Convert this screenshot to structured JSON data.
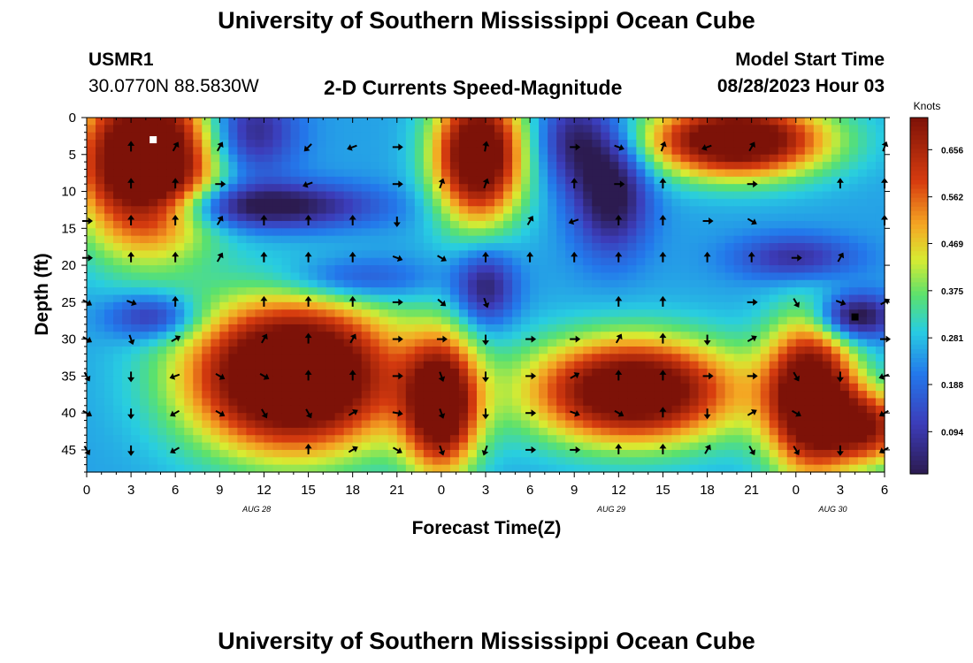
{
  "header": {
    "title": "University of Southern Mississippi Ocean Cube",
    "station_id": "USMR1",
    "station_coords": "30.0770N  88.5830W",
    "subtitle": "2-D Currents Speed-Magnitude",
    "model_label": "Model Start Time",
    "model_time": "08/28/2023 Hour 03"
  },
  "footer": {
    "title": "University of Southern Mississippi Ocean Cube"
  },
  "chart_data": {
    "type": "heatmap",
    "title": "2-D Currents Speed-Magnitude",
    "xlabel": "Forecast Time(Z)",
    "ylabel": "Depth (ft)",
    "x_range_hours": [
      0,
      54
    ],
    "y_range_ft": [
      0,
      48
    ],
    "x_ticks": [
      "0",
      "3",
      "6",
      "9",
      "12",
      "15",
      "18",
      "21",
      "0",
      "3",
      "6",
      "9",
      "12",
      "15",
      "18",
      "21",
      "0",
      "3",
      "6"
    ],
    "x_tick_hours": [
      0,
      3,
      6,
      9,
      12,
      15,
      18,
      21,
      24,
      27,
      30,
      33,
      36,
      39,
      42,
      45,
      48,
      51,
      54
    ],
    "y_ticks": [
      0,
      5,
      10,
      15,
      20,
      25,
      30,
      35,
      40,
      45
    ],
    "date_labels": [
      {
        "text": "AUG 28",
        "hour": 11.5
      },
      {
        "text": "AUG 29",
        "hour": 35.5
      },
      {
        "text": "AUG 30",
        "hour": 50.5
      }
    ],
    "colorbar": {
      "label": "Knots",
      "min": 0.01,
      "max": 0.72,
      "ticks": [
        "0.094",
        "0.188",
        "0.281",
        "0.375",
        "0.469",
        "0.562",
        "0.656"
      ],
      "tick_values": [
        0.094,
        0.188,
        0.281,
        0.375,
        0.469,
        0.562,
        0.656
      ]
    },
    "speed_centers": [
      {
        "h": 4,
        "d": 6,
        "v": 0.7,
        "rh": 4.5,
        "rd": 11
      },
      {
        "h": 26.5,
        "d": 5,
        "v": 0.6,
        "rh": 3,
        "rd": 9
      },
      {
        "h": 44,
        "d": 3,
        "v": 0.6,
        "rh": 6,
        "rd": 5
      },
      {
        "h": 14,
        "d": 35,
        "v": 0.72,
        "rh": 7,
        "rd": 10
      },
      {
        "h": 24,
        "d": 39,
        "v": 0.55,
        "rh": 2.5,
        "rd": 9
      },
      {
        "h": 37,
        "d": 37,
        "v": 0.6,
        "rh": 7,
        "rd": 7
      },
      {
        "h": 49,
        "d": 38,
        "v": 0.6,
        "rh": 3,
        "rd": 10
      },
      {
        "h": 53,
        "d": 42,
        "v": 0.4,
        "rh": 3,
        "rd": 5
      },
      {
        "h": 12,
        "d": 12,
        "v": -0.28,
        "rh": 7,
        "rd": 3
      },
      {
        "h": 11,
        "d": 2,
        "v": -0.22,
        "rh": 3,
        "rd": 6
      },
      {
        "h": 35.5,
        "d": 10,
        "v": -0.28,
        "rh": 2.5,
        "rd": 8
      },
      {
        "h": 33,
        "d": 3,
        "v": -0.2,
        "rh": 2.5,
        "rd": 6
      },
      {
        "h": 27,
        "d": 23,
        "v": -0.22,
        "rh": 2,
        "rd": 5
      },
      {
        "h": 4.5,
        "d": 27,
        "v": -0.2,
        "rh": 3,
        "rd": 3
      },
      {
        "h": 52,
        "d": 27,
        "v": -0.3,
        "rh": 2.5,
        "rd": 3
      },
      {
        "h": 48,
        "d": 19,
        "v": -0.18,
        "rh": 4,
        "rd": 3
      },
      {
        "h": 18,
        "d": 22,
        "v": -0.15,
        "rh": 5,
        "rd": 3
      }
    ],
    "base_speed": 0.25,
    "arrow_depths": [
      4,
      9,
      14,
      19,
      25,
      30,
      35,
      40,
      45
    ],
    "arrow_hours": [
      0,
      3,
      6,
      9,
      12,
      15,
      18,
      21,
      24,
      27,
      30,
      33,
      36,
      39,
      42,
      45,
      48,
      51,
      54
    ],
    "arrow_dirs_deg": [
      [
        null,
        0,
        30,
        30,
        null,
        225,
        250,
        90,
        null,
        10,
        null,
        90,
        110,
        20,
        250,
        30,
        null,
        null,
        20
      ],
      [
        null,
        0,
        0,
        90,
        null,
        250,
        null,
        90,
        20,
        20,
        null,
        0,
        90,
        0,
        null,
        90,
        null,
        0,
        0
      ],
      [
        90,
        0,
        0,
        30,
        0,
        0,
        0,
        180,
        null,
        null,
        30,
        250,
        0,
        0,
        90,
        120,
        null,
        null,
        0
      ],
      [
        90,
        0,
        0,
        30,
        0,
        0,
        0,
        110,
        120,
        0,
        0,
        0,
        0,
        0,
        0,
        0,
        90,
        30,
        null
      ],
      [
        120,
        110,
        0,
        null,
        0,
        0,
        0,
        90,
        130,
        160,
        null,
        null,
        0,
        0,
        null,
        90,
        150,
        110,
        60
      ],
      [
        120,
        160,
        60,
        null,
        30,
        0,
        30,
        90,
        90,
        180,
        90,
        90,
        30,
        0,
        180,
        60,
        null,
        null,
        90
      ],
      [
        150,
        180,
        250,
        120,
        120,
        0,
        0,
        90,
        160,
        180,
        90,
        60,
        0,
        0,
        90,
        90,
        150,
        180,
        250
      ],
      [
        120,
        180,
        240,
        120,
        150,
        150,
        60,
        100,
        160,
        180,
        90,
        110,
        120,
        0,
        180,
        60,
        120,
        null,
        240
      ],
      [
        150,
        180,
        240,
        null,
        null,
        0,
        60,
        120,
        160,
        200,
        90,
        90,
        0,
        0,
        30,
        150,
        150,
        180,
        240
      ]
    ],
    "markers": [
      {
        "h": 4.5,
        "d": 3,
        "color": "#ffffff"
      },
      {
        "h": 52,
        "d": 27,
        "color": "#000000"
      }
    ]
  },
  "colors": {
    "black": "#000000",
    "white": "#ffffff"
  }
}
